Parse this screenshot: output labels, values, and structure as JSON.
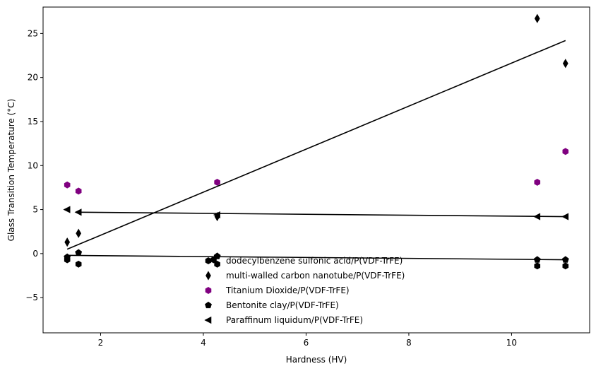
{
  "chart_data": {
    "type": "scatter",
    "title": "",
    "xlabel": "Hardness (HV)",
    "ylabel": "Glass Transition Temperature (°C)",
    "xlim": [
      0.88,
      11.52
    ],
    "ylim": [
      -9.0,
      28.0
    ],
    "xticks": [
      2,
      4,
      6,
      8,
      10
    ],
    "yticks": [
      -5,
      0,
      5,
      10,
      15,
      20,
      25
    ],
    "grid": false,
    "legend_position": "lower-center",
    "series": [
      {
        "name": "dodecylbenzene sulfonic acid/P(VDF-TrFE)",
        "marker": "hexagon",
        "color": "#000000",
        "points": [
          [
            1.35,
            -0.7
          ],
          [
            1.57,
            -1.2
          ],
          [
            4.2,
            -0.7
          ],
          [
            4.27,
            -1.2
          ],
          [
            10.5,
            -1.4
          ],
          [
            11.05,
            -1.4
          ]
        ]
      },
      {
        "name": "multi-walled carbon nanotube/P(VDF-TrFE)",
        "marker": "diamond",
        "color": "#000000",
        "points": [
          [
            1.35,
            1.3
          ],
          [
            1.57,
            2.3
          ],
          [
            4.27,
            4.2
          ],
          [
            10.5,
            26.7
          ],
          [
            11.05,
            21.6
          ]
        ]
      },
      {
        "name": "Titanium Dioxide/P(VDF-TrFE)",
        "marker": "hexagon",
        "color": "#800080",
        "points": [
          [
            1.35,
            7.8
          ],
          [
            1.57,
            7.1
          ],
          [
            4.27,
            8.1
          ],
          [
            10.5,
            8.1
          ],
          [
            11.05,
            11.6
          ]
        ]
      },
      {
        "name": "Bentonite clay/P(VDF-TrFE)",
        "marker": "pentagon",
        "color": "#000000",
        "points": [
          [
            1.35,
            -0.4
          ],
          [
            1.57,
            0.1
          ],
          [
            4.27,
            -0.3
          ],
          [
            10.5,
            -0.7
          ],
          [
            11.05,
            -0.7
          ]
        ]
      },
      {
        "name": "Paraffinum liquidum/P(VDF-TrFE)",
        "marker": "triangle-left",
        "color": "#000000",
        "points": [
          [
            1.35,
            5.0
          ],
          [
            1.57,
            4.7
          ],
          [
            4.27,
            4.4
          ],
          [
            10.5,
            4.2
          ],
          [
            11.05,
            4.2
          ]
        ]
      }
    ],
    "fit_lines": [
      {
        "x": [
          1.35,
          11.05
        ],
        "y": [
          0.5,
          24.2
        ],
        "color": "#000000"
      },
      {
        "x": [
          1.57,
          11.05
        ],
        "y": [
          4.7,
          4.2
        ],
        "color": "#000000"
      },
      {
        "x": [
          1.35,
          11.05
        ],
        "y": [
          -0.2,
          -0.7
        ],
        "color": "#000000"
      }
    ]
  }
}
